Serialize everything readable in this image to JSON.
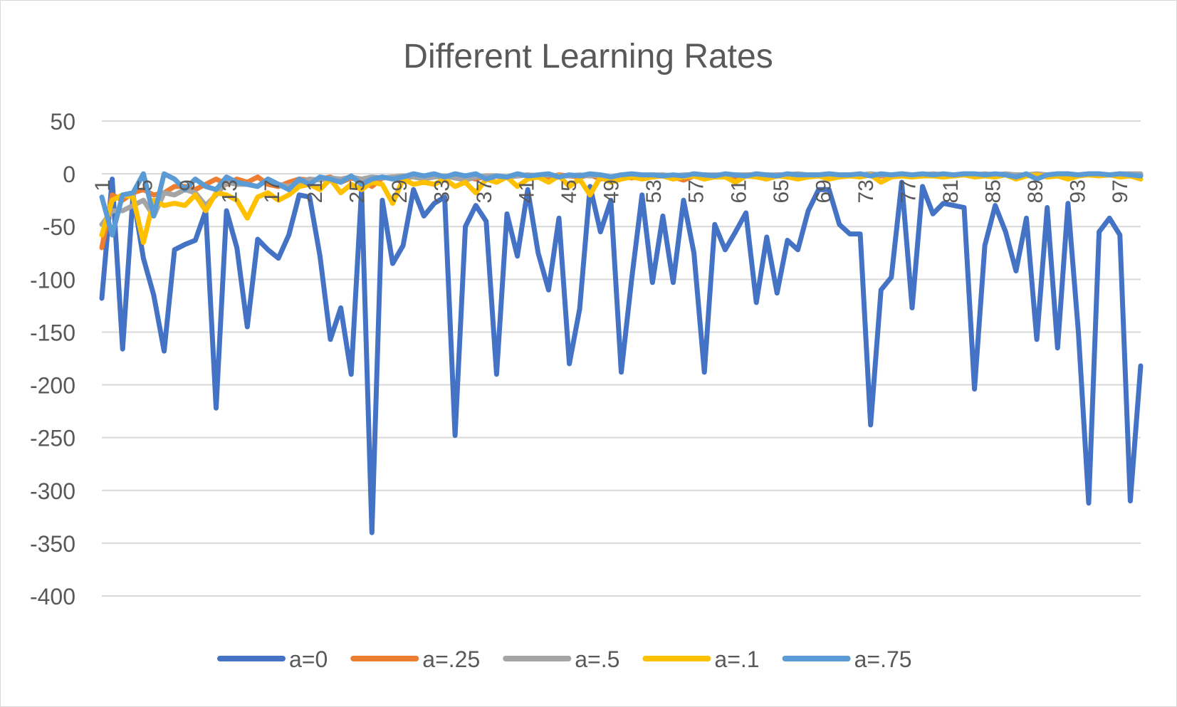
{
  "chart_data": {
    "type": "line",
    "title": "Different Learning Rates",
    "xlabel": "",
    "ylabel": "",
    "ylim": [
      -400,
      50
    ],
    "yticks": [
      50,
      0,
      -50,
      -100,
      -150,
      -200,
      -250,
      -300,
      -350,
      -400
    ],
    "xticks": [
      1,
      5,
      9,
      13,
      17,
      21,
      25,
      29,
      33,
      37,
      41,
      45,
      49,
      53,
      57,
      61,
      65,
      69,
      73,
      77,
      81,
      85,
      89,
      93,
      97
    ],
    "x_range": [
      1,
      99
    ],
    "grid": "horizontal",
    "legend_position": "bottom",
    "series": [
      {
        "name": "a=0",
        "color": "#4472C4",
        "values": [
          -118,
          -5,
          -166,
          -20,
          -80,
          -115,
          -168,
          -72,
          -67,
          -63,
          -35,
          -222,
          -35,
          -70,
          -145,
          -62,
          -72,
          -80,
          -58,
          -20,
          -22,
          -78,
          -157,
          -127,
          -190,
          -15,
          -340,
          -25,
          -85,
          -68,
          -15,
          -40,
          -28,
          -22,
          -248,
          -50,
          -30,
          -45,
          -190,
          -38,
          -78,
          -15,
          -75,
          -110,
          -42,
          -180,
          -128,
          -12,
          -55,
          -25,
          -188,
          -100,
          -20,
          -103,
          -40,
          -103,
          -25,
          -75,
          -188,
          -48,
          -72,
          -55,
          -37,
          -122,
          -60,
          -113,
          -63,
          -72,
          -35,
          -15,
          -15,
          -48,
          -57,
          -57,
          -238,
          -110,
          -98,
          -8,
          -127,
          -12,
          -38,
          -28,
          -30,
          -32,
          -204,
          -68,
          -30,
          -55,
          -92,
          -42,
          -157,
          -32,
          -165,
          -28,
          -150,
          -312,
          -55,
          -42,
          -58,
          -310,
          -182
        ]
      },
      {
        "name": "a=.25",
        "color": "#ED7D31",
        "values": [
          -70,
          -20,
          -25,
          -18,
          -15,
          -20,
          -18,
          -12,
          -12,
          -15,
          -10,
          -5,
          -10,
          -5,
          -8,
          -3,
          -10,
          -12,
          -8,
          -5,
          -6,
          -5,
          -3,
          -8,
          -4,
          -6,
          -12,
          -4,
          -3,
          -6,
          -2,
          -3,
          -2,
          -4,
          -2,
          -3,
          -5,
          -2,
          -2,
          -3,
          -2,
          -1,
          -2,
          -3,
          -1,
          -2,
          -3,
          -1,
          -5,
          -3,
          -2,
          -4,
          -2,
          -2,
          -1,
          -3,
          -6,
          -2,
          -1,
          -2,
          -1,
          -3,
          -1,
          -1,
          -2,
          -1,
          -1,
          -2,
          -1,
          -1,
          -2,
          -1,
          -1,
          -1,
          -1,
          -2,
          -1,
          -1,
          -1,
          -1,
          -1,
          -1,
          -1,
          -1,
          -1,
          -2,
          -1,
          -1,
          -1,
          -1,
          -1,
          -2,
          -1,
          -1,
          -1,
          -1,
          -1,
          -1,
          -1,
          -1,
          -1
        ]
      },
      {
        "name": "a=.5",
        "color": "#A5A5A5",
        "values": [
          -48,
          -35,
          -35,
          -30,
          -25,
          -40,
          -18,
          -20,
          -15,
          -18,
          -30,
          -20,
          -8,
          -10,
          -10,
          -12,
          -5,
          -10,
          -12,
          -8,
          -5,
          -6,
          -4,
          -5,
          -3,
          -5,
          -3,
          -4,
          -3,
          -2,
          -3,
          -5,
          -3,
          -2,
          -4,
          -6,
          -3,
          -2,
          -2,
          -3,
          -2,
          -1,
          -2,
          -1,
          -2,
          -2,
          -1,
          -2,
          -1,
          -3,
          -1,
          -1,
          -2,
          -1,
          -1,
          -2,
          -1,
          -1,
          -1,
          -1,
          -1,
          -1,
          -1,
          -2,
          -1,
          -1,
          -1,
          0,
          -1,
          -1,
          0,
          -1,
          -1,
          -1,
          0,
          -1,
          -1,
          0,
          -1,
          -1,
          0,
          -1,
          -1,
          0,
          -1,
          0,
          -1,
          0,
          -1,
          -1,
          0,
          -1,
          0,
          0,
          -1,
          0,
          0,
          -1,
          0,
          0,
          0
        ]
      },
      {
        "name": "a=.1",
        "color": "#FFC000",
        "values": [
          -58,
          -25,
          -20,
          -22,
          -65,
          -25,
          -30,
          -28,
          -30,
          -20,
          -35,
          -18,
          -20,
          -25,
          -42,
          -22,
          -18,
          -25,
          -20,
          -12,
          -10,
          -15,
          -5,
          -18,
          -10,
          -15,
          -8,
          -10,
          -28,
          -5,
          -10,
          -8,
          -10,
          -5,
          -12,
          -8,
          -18,
          -5,
          -8,
          -3,
          -12,
          -5,
          -3,
          -8,
          -2,
          -12,
          -5,
          -20,
          -3,
          -8,
          -5,
          -3,
          -5,
          -3,
          -2,
          -5,
          -3,
          -2,
          -5,
          -3,
          -3,
          -8,
          -2,
          -3,
          -5,
          -2,
          -3,
          -5,
          -3,
          -2,
          -5,
          -3,
          -2,
          -3,
          -1,
          -8,
          -3,
          -2,
          -3,
          -2,
          -2,
          -3,
          -2,
          -1,
          -3,
          -2,
          -3,
          -1,
          -5,
          -2,
          -1,
          -3,
          -2,
          -5,
          -2,
          -1,
          -2,
          -1,
          -3,
          -2,
          -5
        ]
      },
      {
        "name": "a=.75",
        "color": "#5B9BD5",
        "values": [
          -22,
          -58,
          -20,
          -18,
          0,
          -40,
          0,
          -5,
          -15,
          -5,
          -12,
          -15,
          -3,
          -8,
          -10,
          -12,
          -5,
          -10,
          -15,
          -5,
          -10,
          -3,
          -5,
          -8,
          -2,
          -10,
          -5,
          -3,
          -5,
          -3,
          0,
          -2,
          0,
          -3,
          0,
          -2,
          0,
          -5,
          -2,
          -3,
          0,
          -2,
          -1,
          0,
          -3,
          -1,
          -2,
          0,
          -1,
          -3,
          -1,
          0,
          -1,
          -1,
          -2,
          -1,
          -2,
          0,
          -1,
          -2,
          0,
          -1,
          -2,
          0,
          -1,
          -2,
          0,
          -1,
          -1,
          -1,
          0,
          -1,
          -1,
          0,
          -2,
          0,
          -1,
          0,
          -1,
          0,
          -1,
          0,
          -1,
          0,
          0,
          -1,
          0,
          -1,
          -3,
          0,
          -5,
          -1,
          0,
          0,
          -1,
          0,
          0,
          -1,
          0,
          -1,
          -2
        ]
      }
    ]
  }
}
